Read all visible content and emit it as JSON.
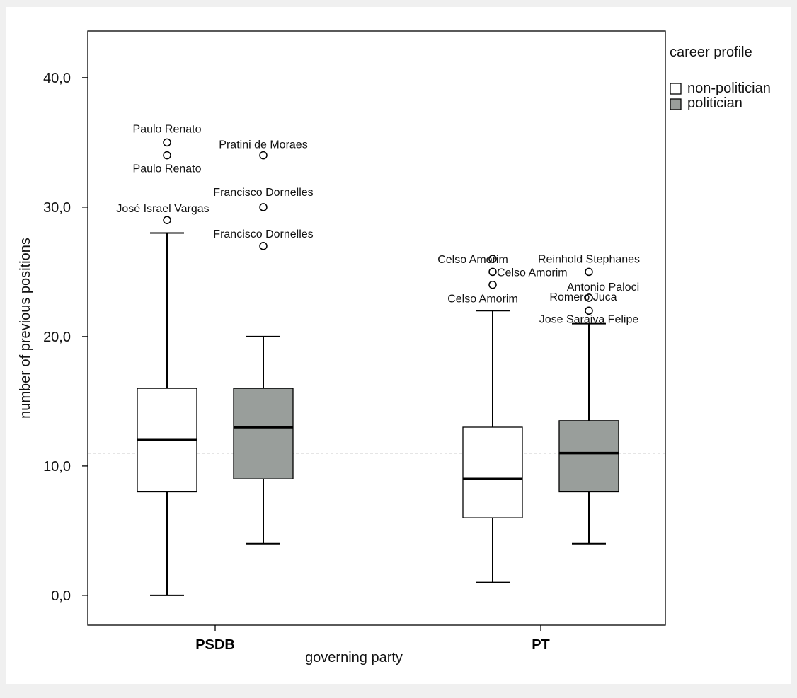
{
  "chart_data": {
    "type": "box",
    "xlabel": "governing party",
    "ylabel": "number of previous positions",
    "categories": [
      "PSDB",
      "PT"
    ],
    "ylim": [
      -2.3,
      43.6
    ],
    "yticks": [
      0,
      10,
      20,
      30,
      40
    ],
    "ytick_labels": [
      "0,0",
      "10,0",
      "20,0",
      "30,0",
      "40,0"
    ],
    "reference_line": {
      "y": 11,
      "style": "dashed"
    },
    "legend": {
      "title": "career profile",
      "placement": "top-right-outside",
      "entries": [
        {
          "name": "non-politician",
          "color": "#ffffff"
        },
        {
          "name": "politician",
          "color": "#999e9b"
        }
      ]
    },
    "series": [
      {
        "name": "non-politician",
        "color": "#ffffff",
        "boxes": [
          {
            "category": "PSDB",
            "min": 0,
            "q1": 8,
            "median": 12,
            "q3": 16,
            "max": 28,
            "outliers": [
              {
                "value": 35,
                "label": "Paulo Renato"
              },
              {
                "value": 34,
                "label": "Paulo Renato"
              },
              {
                "value": 29,
                "label": "José Israel Vargas"
              }
            ]
          },
          {
            "category": "PT",
            "min": 1,
            "q1": 6,
            "median": 9,
            "q3": 13,
            "max": 22,
            "outliers": [
              {
                "value": 26,
                "label": "Celso Amorim"
              },
              {
                "value": 25,
                "label": "Celso Amorim"
              },
              {
                "value": 24,
                "label": "Celso Amorim"
              }
            ]
          }
        ]
      },
      {
        "name": "politician",
        "color": "#999e9b",
        "boxes": [
          {
            "category": "PSDB",
            "min": 4,
            "q1": 9,
            "median": 13,
            "q3": 16,
            "max": 20,
            "outliers": [
              {
                "value": 34,
                "label": "Pratini de Moraes"
              },
              {
                "value": 30,
                "label": "Francisco Dornelles"
              },
              {
                "value": 27,
                "label": "Francisco Dornelles"
              }
            ]
          },
          {
            "category": "PT",
            "min": 4,
            "q1": 8,
            "median": 11,
            "q3": 13.5,
            "max": 21,
            "outliers": [
              {
                "value": 25,
                "label": "Reinhold Stephanes"
              },
              {
                "value": 23,
                "label": "Antonio Paloci"
              },
              {
                "value": 23,
                "label": "Romero Juca"
              },
              {
                "value": 22,
                "label": "Jose Saraiva Felipe"
              }
            ]
          }
        ]
      }
    ]
  }
}
